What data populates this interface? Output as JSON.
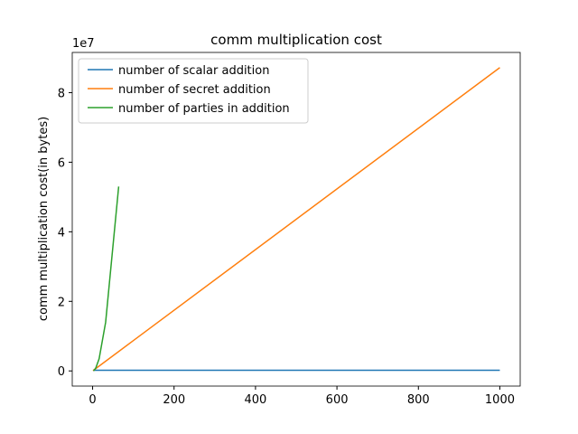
{
  "chart_data": {
    "type": "line",
    "title": "comm multiplication cost",
    "ylabel": "comm multiplication cost(in bytes)",
    "y_offset_label": "1e7",
    "xlim": [
      -50,
      1050
    ],
    "xticks": [
      0,
      200,
      400,
      600,
      800,
      1000
    ],
    "ylim": [
      -0.436,
      9.156
    ],
    "yticks": [
      0,
      2,
      4,
      6,
      8
    ],
    "legend": "upper left",
    "series": [
      {
        "name": "number of scalar addition",
        "color": "#1f77b4",
        "x": [
          1,
          1000
        ],
        "values": [
          0.02,
          0.02
        ]
      },
      {
        "name": "number of secret addition",
        "color": "#ff7f0e",
        "x": [
          1,
          10,
          100,
          1000
        ],
        "values": [
          0.0087,
          0.087,
          0.872,
          8.72
        ]
      },
      {
        "name": "number of parties in addition",
        "color": "#2ca02c",
        "x": [
          2,
          4,
          8,
          16,
          32,
          64
        ],
        "values": [
          0.005,
          0.02,
          0.09,
          0.35,
          1.4,
          5.3
        ]
      }
    ]
  }
}
